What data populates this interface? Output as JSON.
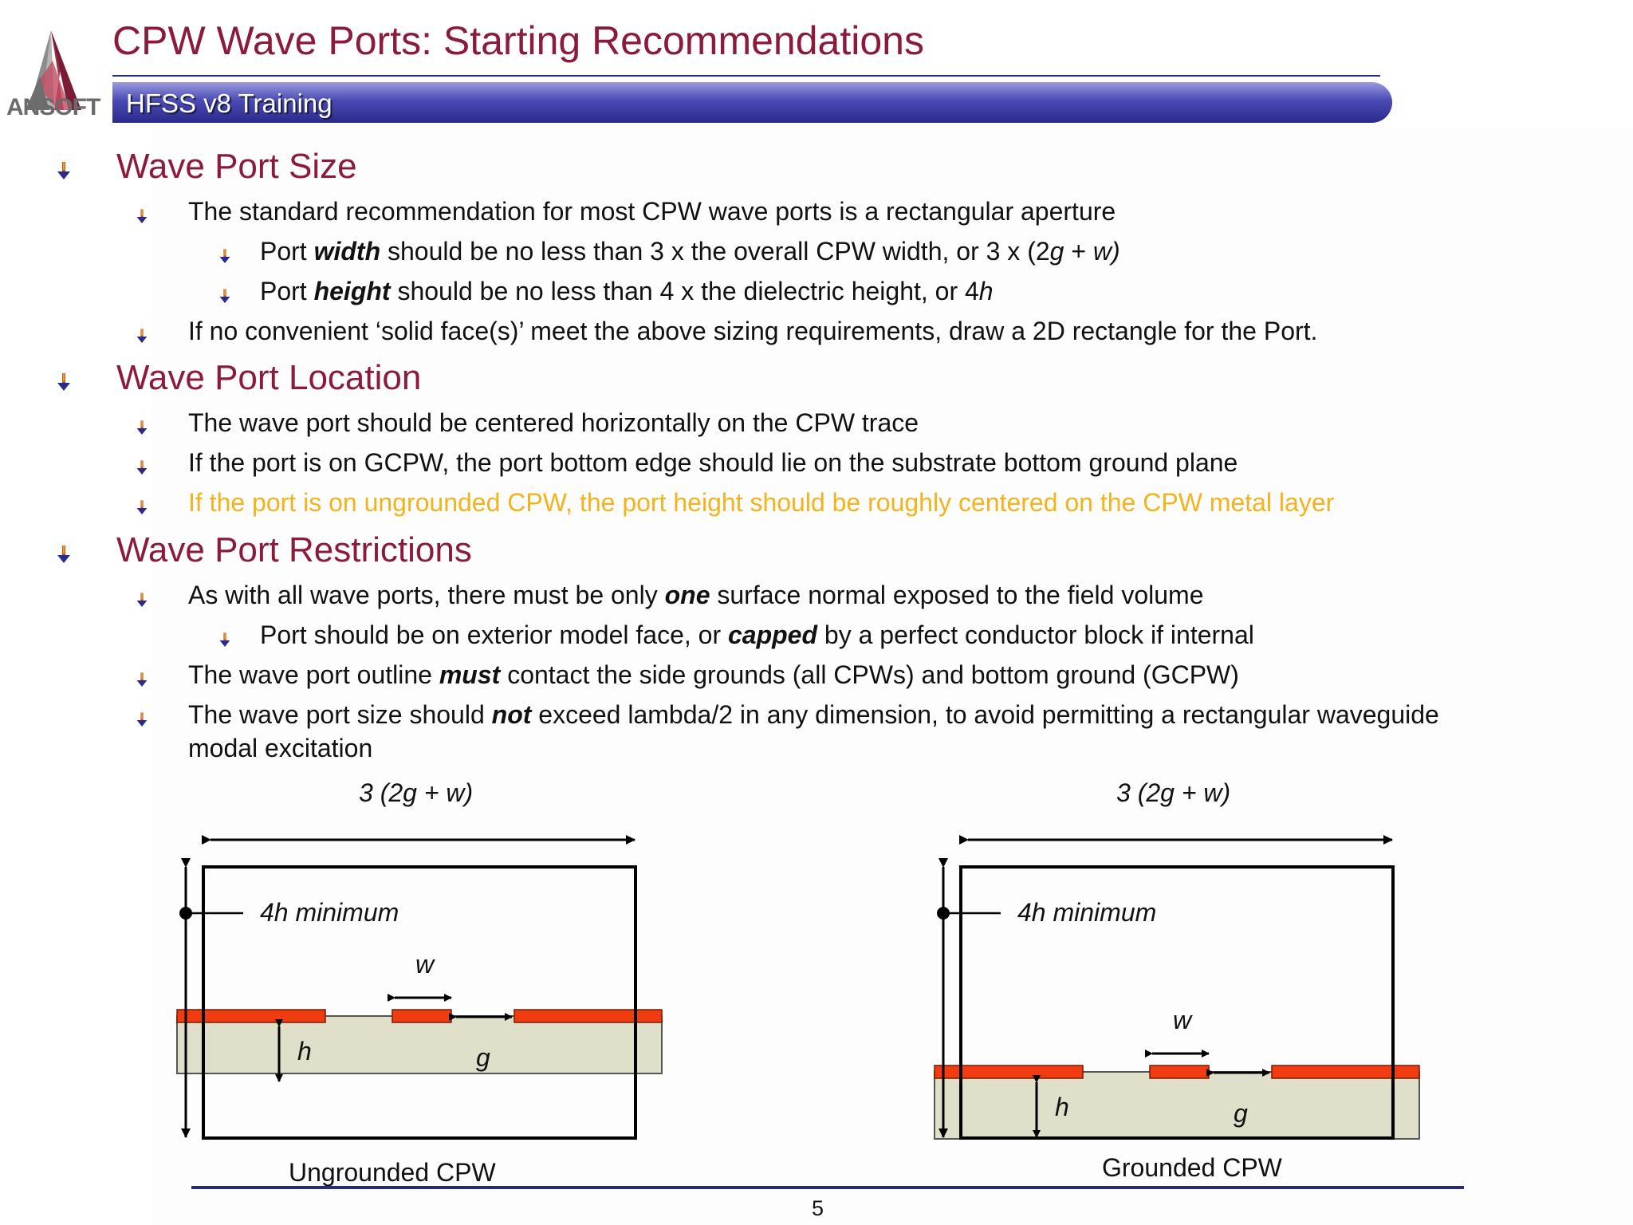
{
  "header": {
    "title": "CPW Wave Ports:  Starting Recommendations",
    "banner": "HFSS v8 Training",
    "logo_text": "ANSOFT",
    "accent_color": "#8b1a3b",
    "banner_color": "#3a3aa8"
  },
  "sections": {
    "size": {
      "heading": "Wave Port Size",
      "b1": "The standard recommendation for most CPW wave ports is a rectangular aperture",
      "b1a_pre": "Port ",
      "b1a_em": "width",
      "b1a_mid": " should be no less than 3 x the overall CPW width, or 3 x (2",
      "b1a_g": "g",
      "b1a_plus": " + ",
      "b1a_w": "w)",
      "b1b_pre": "Port ",
      "b1b_em": "height",
      "b1b_mid": " should be no less than 4 x the dielectric height, or 4",
      "b1b_h": "h",
      "b2": "If no convenient ‘solid face(s)’ meet the above sizing requirements, draw a 2D rectangle for the Port."
    },
    "location": {
      "heading": "Wave Port Location",
      "b1": "The wave port should be centered horizontally on the CPW trace",
      "b2": "If the port is on GCPW, the port bottom edge should lie on the substrate bottom ground plane",
      "b3": "If the port is on ungrounded CPW, the port height should be roughly centered on the CPW metal layer"
    },
    "restrictions": {
      "heading": "Wave Port Restrictions",
      "b1_pre": "As with all wave ports, there must be only ",
      "b1_em": "one",
      "b1_post": " surface normal exposed to the field volume",
      "b1a_pre": "Port should be on exterior model face, or ",
      "b1a_em": "capped",
      "b1a_post": " by a perfect conductor block if internal",
      "b2_pre": "The wave port outline ",
      "b2_em": "must",
      "b2_post": "  contact the side grounds (all CPWs) and bottom ground (GCPW)",
      "b3_pre": "The wave port size should ",
      "b3_em": "not",
      "b3_post": " exceed lambda/2 in any dimension, to avoid permitting a rectangular waveguide",
      "b3_cont": "modal excitation"
    }
  },
  "diagrams": {
    "left": {
      "width_label": "3 (2g + w)",
      "height_label": "4h minimum",
      "w_label": "w",
      "g_label": "g",
      "h_label": "h",
      "caption": "Ungrounded CPW"
    },
    "right": {
      "width_label": "3 (2g + w)",
      "height_label": "4h minimum",
      "w_label": "w",
      "g_label": "g",
      "h_label": "h",
      "caption": "Grounded CPW"
    },
    "metal_color": "#f03c10",
    "substrate_color": "#e0dfc9"
  },
  "footer": {
    "page_number": "5"
  }
}
